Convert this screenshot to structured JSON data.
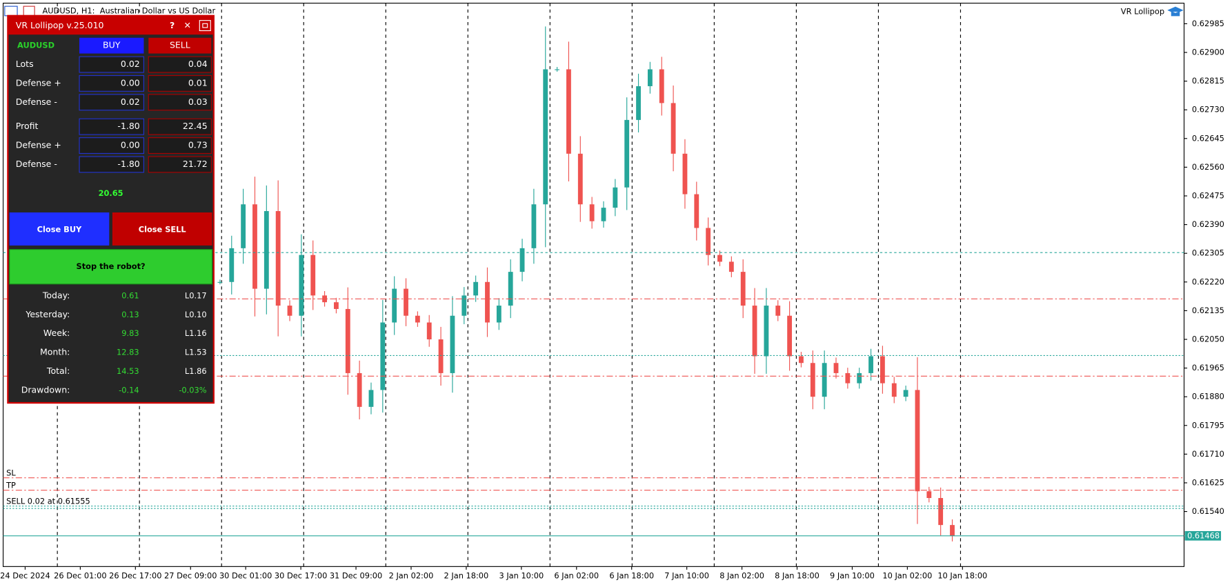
{
  "header": {
    "title": "AUDUSD, H1:  Australian Dollar vs US Dollar",
    "expert": "VR Lollipop"
  },
  "panel": {
    "title": "VR Lollipop v.25.010",
    "symbol": "AUDUSD",
    "buy": "BUY",
    "sell": "SELL",
    "rows": [
      {
        "label": "Lots",
        "buy": "0.02",
        "sell": "0.04"
      },
      {
        "label": "Defense +",
        "buy": "0.00",
        "sell": "0.01"
      },
      {
        "label": "Defense -",
        "buy": "0.02",
        "sell": "0.03"
      },
      {
        "label": "Profit",
        "buy": "-1.80",
        "sell": "22.45"
      },
      {
        "label": "Defense +",
        "buy": "0.00",
        "sell": "0.73"
      },
      {
        "label": "Defense -",
        "buy": "-1.80",
        "sell": "21.72"
      }
    ],
    "total": "20.65",
    "close_buy": "Close BUY",
    "close_sell": "Close SELL",
    "stop": "Stop the robot?",
    "stats": [
      {
        "label": "Today:",
        "value": "0.61",
        "level": "L0.17"
      },
      {
        "label": "Yesterday:",
        "value": "0.13",
        "level": "L0.10"
      },
      {
        "label": "Week:",
        "value": "9.83",
        "level": "L1.16"
      },
      {
        "label": "Month:",
        "value": "12.83",
        "level": "L1.53"
      },
      {
        "label": "Total:",
        "value": "14.53",
        "level": "L1.86"
      },
      {
        "label": "Drawdown:",
        "value": "-0.14",
        "level": "-0.03%"
      }
    ]
  },
  "chart": {
    "type": "candlestick",
    "ylim": [
      0.61377,
      0.63046
    ],
    "yticks": [
      {
        "value": 0.62985,
        "label": "0.62985"
      },
      {
        "value": 0.629,
        "label": "0.62900"
      },
      {
        "value": 0.62815,
        "label": "0.62815"
      },
      {
        "value": 0.6273,
        "label": "0.62730"
      },
      {
        "value": 0.62645,
        "label": "0.62645"
      },
      {
        "value": 0.6256,
        "label": "0.62560"
      },
      {
        "value": 0.62475,
        "label": "0.62475"
      },
      {
        "value": 0.6239,
        "label": "0.62390"
      },
      {
        "value": 0.62305,
        "label": "0.62305"
      },
      {
        "value": 0.6222,
        "label": "0.62220"
      },
      {
        "value": 0.62135,
        "label": "0.62135"
      },
      {
        "value": 0.6205,
        "label": "0.62050"
      },
      {
        "value": 0.61965,
        "label": "0.61965"
      },
      {
        "value": 0.6188,
        "label": "0.61880"
      },
      {
        "value": 0.61795,
        "label": "0.61795"
      },
      {
        "value": 0.6171,
        "label": "0.61710"
      },
      {
        "value": 0.61625,
        "label": "0.61625"
      },
      {
        "value": 0.6154,
        "label": "0.61540"
      }
    ],
    "current": {
      "value": 0.61468,
      "label": "0.61468",
      "color": "#26a69a"
    },
    "xlabels": [
      "24 Dec 2024",
      "26 Dec 01:00",
      "26 Dec 17:00",
      "27 Dec 09:00",
      "30 Dec 01:00",
      "30 Dec 17:00",
      "31 Dec 09:00",
      "2 Jan 02:00",
      "2 Jan 18:00",
      "3 Jan 10:00",
      "6 Jan 02:00",
      "6 Jan 18:00",
      "7 Jan 10:00",
      "8 Jan 02:00",
      "8 Jan 18:00",
      "9 Jan 10:00",
      "10 Jan 02:00",
      "10 Jan 18:00"
    ],
    "up_color": "#26a69a",
    "down_color": "#ef5350",
    "closes": [
      0.6222,
      0.6232,
      0.6245,
      0.622,
      0.6243,
      0.6215,
      0.6212,
      0.623,
      0.6218,
      0.6216,
      0.6214,
      0.6195,
      0.6185,
      0.619,
      0.621,
      0.622,
      0.6212,
      0.621,
      0.6205,
      0.6195,
      0.6212,
      0.6218,
      0.6222,
      0.621,
      0.6215,
      0.6225,
      0.6232,
      0.6245,
      0.6285,
      0.6285,
      0.626,
      0.6245,
      0.624,
      0.6244,
      0.625,
      0.627,
      0.628,
      0.6285,
      0.6275,
      0.626,
      0.6248,
      0.6238,
      0.623,
      0.6228,
      0.6225,
      0.6215,
      0.62,
      0.6215,
      0.6212,
      0.62,
      0.6198,
      0.6188,
      0.6198,
      0.6195,
      0.6192,
      0.6195,
      0.62,
      0.6192,
      0.6188,
      0.619,
      0.616,
      0.6158,
      0.615,
      0.61468
    ],
    "levels": [
      {
        "price": 0.62307,
        "color": "#26a69a",
        "dash": "3,3"
      },
      {
        "price": 0.6217,
        "color": "#ef5350",
        "dash": "8,3,2,3"
      },
      {
        "price": 0.62002,
        "color": "#26a69a",
        "dash": "2,2"
      },
      {
        "price": 0.61941,
        "color": "#ef5350",
        "dash": "8,3,2,3"
      },
      {
        "price": 0.6164,
        "color": "#ef5350",
        "dash": "8,3,2,3",
        "label": "SL"
      },
      {
        "price": 0.61603,
        "color": "#ef5350",
        "dash": "8,3,2,3",
        "label": "TP"
      },
      {
        "price": 0.61556,
        "color": "#26a69a",
        "dash": "2,2",
        "label": "SELL 0.02 at 0.61555"
      },
      {
        "price": 0.61549,
        "color": "#26a69a",
        "dash": "2,2"
      }
    ]
  }
}
